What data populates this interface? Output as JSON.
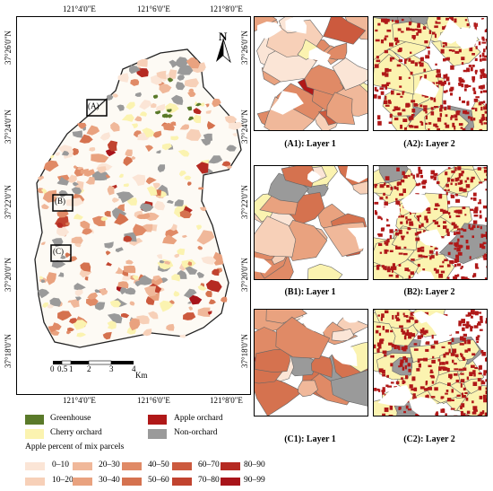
{
  "main_map": {
    "top_lon_labels": [
      "121°4'0\"E",
      "121°6'0\"E",
      "121°8'0\"E"
    ],
    "bottom_lon_labels": [
      "121°4'0\"E",
      "121°6'0\"E",
      "121°8'0\"E"
    ],
    "left_lat_labels": [
      "37°26'0\"N",
      "37°24'0\"N",
      "37°22'0\"N",
      "37°20'0\"N",
      "37°18'0\"N"
    ],
    "north_label": "N",
    "scale_labels": [
      "0",
      "0.5",
      "1",
      "2",
      "3",
      "4"
    ],
    "scale_unit": "Km",
    "boxes": [
      "(A)",
      "(B)",
      "(C)"
    ]
  },
  "panels": [
    {
      "caption": "(A1): Layer 1"
    },
    {
      "caption": "(A2): Layer 2"
    },
    {
      "caption": "(B1): Layer 1"
    },
    {
      "caption": "(B2): Layer 2"
    },
    {
      "caption": "(C1): Layer 1"
    },
    {
      "caption": "(C2): Layer 2"
    }
  ],
  "panel_left_lat_labels": [
    "37°26'0\"N",
    "37°24'0\"N",
    "37°22'0\"N",
    "37°20'0\"N",
    "37°18'0\"N"
  ],
  "legend": {
    "classes": [
      {
        "label": "Greenhouse",
        "color": "#5a7a2a"
      },
      {
        "label": "Apple orchard",
        "color": "#b01818"
      },
      {
        "label": "Cherry orchard",
        "color": "#fbf3b0"
      },
      {
        "label": "Non-orchard",
        "color": "#9a9a9a"
      }
    ],
    "mix_title": "Apple percent of mix parcels",
    "mix_bins": [
      {
        "label": "0–10",
        "color": "#fbe5d6"
      },
      {
        "label": "10–20",
        "color": "#f7d0b8"
      },
      {
        "label": "20–30",
        "color": "#f0b89a"
      },
      {
        "label": "30–40",
        "color": "#e9a27f"
      },
      {
        "label": "40–50",
        "color": "#e08a66"
      },
      {
        "label": "50–60",
        "color": "#d5724f"
      },
      {
        "label": "60–70",
        "color": "#cc5a3e"
      },
      {
        "label": "70–80",
        "color": "#c1432f"
      },
      {
        "label": "80–90",
        "color": "#b52a22"
      },
      {
        "label": "90–99",
        "color": "#a8141a"
      }
    ]
  }
}
